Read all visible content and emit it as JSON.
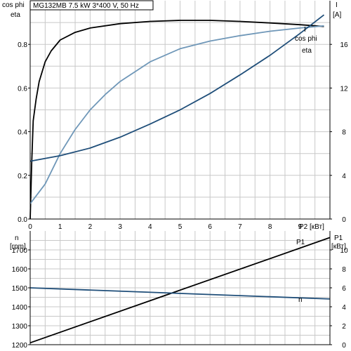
{
  "chart_data": [
    {
      "type": "line",
      "title": "MG132MB   7.5 kW   3*400 V, 50 Hz",
      "xlabel": "P2 [кВт]",
      "xlim": [
        0,
        10
      ],
      "x_ticks": [
        "0",
        "1",
        "2",
        "3",
        "4",
        "5",
        "6",
        "7",
        "8",
        "9"
      ],
      "y_left": {
        "label_line1": "cos phi",
        "label_line2": "eta",
        "ylim": [
          0,
          1.0
        ],
        "ticks": [
          "0.0",
          "0.2",
          "0.4",
          "0.6",
          "0.8"
        ],
        "tick_values": [
          0,
          0.2,
          0.4,
          0.6,
          0.8
        ]
      },
      "y_right": {
        "label_line1": "I",
        "label_line2": "[A]",
        "ylim": [
          0,
          20
        ],
        "ticks": [
          "0",
          "4",
          "8",
          "12",
          "16"
        ],
        "tick_values": [
          0,
          4,
          8,
          12,
          16
        ]
      },
      "grid": true,
      "series": [
        {
          "name": "eta",
          "axis": "left",
          "color": "#000000",
          "x": [
            0,
            0.05,
            0.1,
            0.2,
            0.3,
            0.5,
            0.7,
            1.0,
            1.5,
            2.0,
            3.0,
            4.0,
            5.0,
            6.0,
            7.0,
            8.0,
            9.0,
            9.8
          ],
          "y": [
            0,
            0.25,
            0.45,
            0.55,
            0.63,
            0.72,
            0.77,
            0.82,
            0.855,
            0.875,
            0.895,
            0.905,
            0.91,
            0.91,
            0.905,
            0.898,
            0.89,
            0.882
          ]
        },
        {
          "name": "cos phi",
          "axis": "left",
          "color": "#6f97b8",
          "x": [
            0,
            0.5,
            1.0,
            1.5,
            2.0,
            2.5,
            3.0,
            4.0,
            5.0,
            6.0,
            7.0,
            8.0,
            9.0,
            9.8
          ],
          "y": [
            0.07,
            0.16,
            0.3,
            0.41,
            0.5,
            0.57,
            0.63,
            0.72,
            0.78,
            0.815,
            0.84,
            0.86,
            0.875,
            0.885
          ]
        },
        {
          "name": "I",
          "axis": "right",
          "color": "#1f4e79",
          "x": [
            0,
            1,
            2,
            3,
            4,
            5,
            6,
            7,
            8,
            9,
            9.8
          ],
          "y": [
            5.3,
            5.8,
            6.5,
            7.5,
            8.7,
            10.0,
            11.5,
            13.2,
            15.0,
            17.0,
            18.7
          ]
        }
      ]
    },
    {
      "type": "line",
      "title": "",
      "xlim": [
        0,
        10
      ],
      "y_left": {
        "label_line1": "n",
        "label_line2": "[rpm]",
        "ylim": [
          1200,
          1800
        ],
        "ticks": [
          "1200",
          "1300",
          "1400",
          "1500",
          "1600",
          "1700"
        ],
        "tick_values": [
          1200,
          1300,
          1400,
          1500,
          1600,
          1700
        ]
      },
      "y_right": {
        "label_line1": "P1",
        "label_line2": "[кВт]",
        "ylim": [
          0,
          12
        ],
        "ticks": [
          "0",
          "2",
          "4",
          "6",
          "8",
          "10"
        ],
        "tick_values": [
          0,
          2,
          4,
          6,
          8,
          10
        ]
      },
      "grid": true,
      "series": [
        {
          "name": "P1",
          "axis": "right",
          "color": "#000000",
          "x": [
            0,
            10
          ],
          "y": [
            0.2,
            11.3
          ]
        },
        {
          "name": "n",
          "axis": "left",
          "color": "#1f4e79",
          "x": [
            0,
            10
          ],
          "y": [
            1500,
            1441
          ]
        }
      ]
    }
  ]
}
